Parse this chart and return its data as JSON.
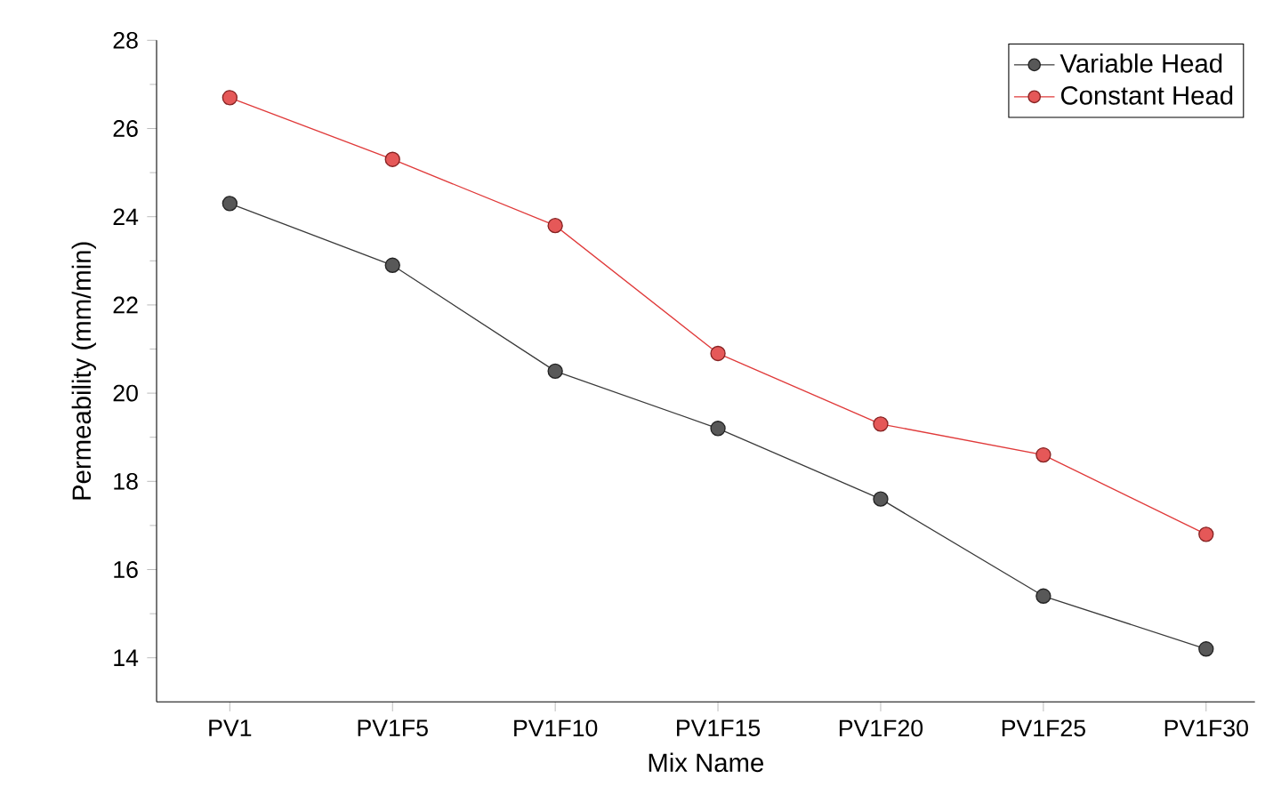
{
  "chart_data": {
    "type": "line",
    "xlabel": "Mix Name",
    "ylabel": "Permeability (mm/min)",
    "categories": [
      "PV1",
      "PV1F5",
      "PV1F10",
      "PV1F15",
      "PV1F20",
      "PV1F25",
      "PV1F30"
    ],
    "series": [
      {
        "name": "Variable Head",
        "color": "#3a3a3a",
        "values": [
          24.3,
          22.9,
          20.5,
          19.2,
          17.6,
          15.4,
          14.2
        ]
      },
      {
        "name": "Constant Head",
        "color": "#e03a3a",
        "values": [
          26.7,
          25.3,
          23.8,
          20.9,
          19.3,
          18.6,
          16.8
        ]
      }
    ],
    "ylim": [
      13,
      28
    ],
    "yticks": [
      14,
      16,
      18,
      20,
      22,
      24,
      26,
      28
    ],
    "legend": "top right",
    "marker": "circle",
    "line_style": "solid",
    "grid": false
  }
}
